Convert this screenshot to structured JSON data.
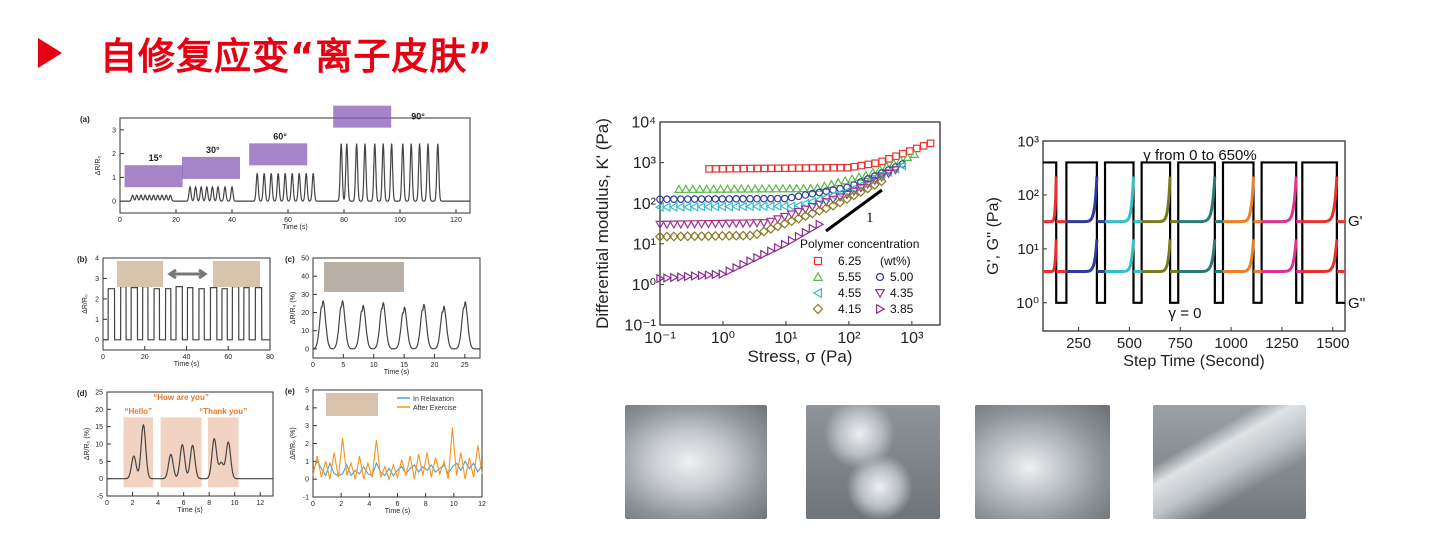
{
  "slide": {
    "title": "自修复应变“离子皮肤”",
    "accent_color": "#e60012"
  },
  "photos": [
    {
      "label": "hydrogel-intact"
    },
    {
      "label": "hydrogel-cut"
    },
    {
      "label": "hydrogel-healed"
    },
    {
      "label": "hydrogel-stretched"
    }
  ],
  "chart_data": [
    {
      "id": "a",
      "panel_label": "(a)",
      "type": "line",
      "xlabel": "Time (s)",
      "ylabel": "ΔR/R₀",
      "xlim": [
        0,
        125
      ],
      "ylim": [
        -0.5,
        3.5
      ],
      "xticks": [
        0,
        20,
        40,
        60,
        80,
        100,
        120
      ],
      "yticks": [
        0,
        1,
        2,
        3
      ],
      "groups": [
        {
          "label": "15°",
          "height": 0.25,
          "times": [
            4.5,
            6,
            7.5,
            9,
            10.5,
            12,
            13.5,
            15,
            16.5,
            18
          ]
        },
        {
          "label": "30°",
          "height": 0.6,
          "times": [
            25,
            27,
            29,
            31,
            33,
            35,
            37.5,
            40
          ]
        },
        {
          "label": "60°",
          "height": 1.17,
          "times": [
            49,
            51.5,
            54,
            56.5,
            59,
            61.5,
            64,
            66.5,
            69
          ]
        },
        {
          "label": "90°",
          "height": 2.42,
          "times": [
            79,
            81,
            84.5,
            87.5,
            91,
            94,
            97,
            101,
            104,
            107,
            110,
            113.5
          ]
        }
      ]
    },
    {
      "id": "b",
      "panel_label": "(b)",
      "type": "line",
      "xlabel": "Time (s)",
      "ylabel": "ΔR/R₀",
      "xlim": [
        0,
        80
      ],
      "ylim": [
        -0.5,
        4
      ],
      "xticks": [
        0,
        20,
        40,
        60,
        80
      ],
      "yticks": [
        0,
        1,
        2,
        3,
        4
      ],
      "pulses": [
        [
          2.5,
          5.5,
          2.5
        ],
        [
          8.5,
          11,
          2.6
        ],
        [
          13.5,
          16.5,
          2.55
        ],
        [
          19,
          21.5,
          2.6
        ],
        [
          24.5,
          27,
          2.5
        ],
        [
          30,
          32.5,
          2.5
        ],
        [
          35,
          38,
          2.6
        ],
        [
          40.5,
          43,
          2.55
        ],
        [
          46,
          48.5,
          2.5
        ],
        [
          51.5,
          54.5,
          2.55
        ],
        [
          57,
          59.5,
          2.5
        ],
        [
          62,
          65,
          2.6
        ],
        [
          67.5,
          70,
          2.55
        ],
        [
          73,
          76,
          2.55
        ]
      ]
    },
    {
      "id": "c",
      "panel_label": "(c)",
      "type": "line",
      "xlabel": "Time (s)",
      "ylabel": "ΔR/R₀ (%)",
      "xlim": [
        0,
        27.5
      ],
      "ylim": [
        -5,
        50
      ],
      "xticks": [
        0,
        5,
        10,
        15,
        20,
        25
      ],
      "yticks": [
        0,
        10,
        20,
        30,
        40,
        50
      ],
      "peaks": [
        [
          1.6,
          27
        ],
        [
          4.8,
          27
        ],
        [
          8.2,
          24.5
        ],
        [
          11.5,
          26
        ],
        [
          15,
          23.5
        ],
        [
          18.2,
          25
        ],
        [
          21.5,
          24
        ],
        [
          25,
          26.5
        ]
      ]
    },
    {
      "id": "d",
      "panel_label": "(d)",
      "type": "line",
      "xlabel": "Time (s)",
      "ylabel": "ΔR/R₀ (%)",
      "xlim": [
        0,
        13
      ],
      "ylim": [
        -5,
        25
      ],
      "xticks": [
        0,
        2,
        4,
        6,
        8,
        10,
        12
      ],
      "yticks": [
        -5,
        0,
        5,
        10,
        15,
        20,
        25
      ],
      "peaks": [
        [
          2.1,
          6.5
        ],
        [
          2.85,
          15.5
        ],
        [
          5,
          7
        ],
        [
          5.9,
          9.8
        ],
        [
          6.7,
          9.6
        ],
        [
          8.4,
          11.5
        ],
        [
          8.95,
          4.5
        ],
        [
          9.5,
          10.5
        ]
      ],
      "annotations": [
        {
          "text": "“Hello”",
          "span": [
            1.3,
            3.6
          ]
        },
        {
          "text": "“How are you”",
          "span": [
            4.2,
            7.4
          ]
        },
        {
          "text": "“Thank you”",
          "span": [
            7.9,
            10.3
          ]
        }
      ],
      "annotation_color": "#e87722"
    },
    {
      "id": "e",
      "panel_label": "(e)",
      "type": "line",
      "xlabel": "Time (s)",
      "ylabel": "ΔR/R₀ (%)",
      "xlim": [
        0,
        12
      ],
      "ylim": [
        -1,
        5
      ],
      "xticks": [
        0,
        2,
        4,
        6,
        8,
        10,
        12
      ],
      "yticks": [
        -1,
        0,
        1,
        2,
        3,
        4,
        5
      ],
      "x_step": 0.3,
      "series": [
        {
          "name": "In Relaxation",
          "color": "#4a9fd4",
          "values": [
            0.5,
            1.0,
            0.6,
            0.2,
            0.9,
            0.3,
            0.2,
            0.3,
            0.8,
            0.2,
            0.5,
            0.3,
            0.7,
            0.3,
            0.2,
            0.9,
            0.4,
            0.2,
            0.6,
            0.2,
            0.5,
            0.7,
            0.3,
            0.6,
            0.8,
            0.4,
            0.7,
            0.5,
            0.8,
            0.4,
            0.6,
            0.8,
            0.3,
            0.7,
            0.9,
            0.5,
            1.0,
            0.6,
            0.9,
            0.4,
            0.8
          ]
        },
        {
          "name": "After Exercise",
          "color": "#f7941d",
          "values": [
            0.2,
            1.3,
            0.1,
            1.0,
            0.0,
            1.5,
            0.1,
            2.3,
            0.2,
            0.9,
            0.0,
            1.3,
            0.0,
            0.9,
            0.1,
            2.2,
            0.1,
            0.7,
            0.0,
            0.8,
            0.1,
            1.1,
            0.2,
            1.3,
            0.0,
            1.4,
            0.2,
            1.5,
            0.1,
            1.2,
            0.3,
            1.0,
            0.0,
            2.9,
            0.2,
            1.5,
            0.0,
            1.2,
            0.1,
            1.9,
            0.3
          ]
        }
      ]
    },
    {
      "id": "k",
      "type": "scatter",
      "xlabel": "Stress, σ (Pa)",
      "ylabel": "Differential modulus, K' (Pa)",
      "xscale": "log",
      "yscale": "log",
      "xlim": [
        0.1,
        2800
      ],
      "ylim": [
        0.1,
        10000
      ],
      "xticks": [
        "10⁻¹",
        "10⁰",
        "10¹",
        "10²",
        "10³"
      ],
      "yticks": [
        "10⁻¹",
        "10⁰",
        "10¹",
        "10²",
        "10³",
        "10⁴"
      ],
      "legend_title": "Polymer concentration",
      "legend_unit": "(wt%)",
      "slope_label": "1",
      "series": [
        {
          "name": "6.25",
          "marker": "square",
          "color": "#e8322d",
          "points": [
            [
              0.6,
              700
            ],
            [
              100,
              750
            ],
            [
              300,
              1000
            ],
            [
              2000,
              3000
            ]
          ]
        },
        {
          "name": "5.55",
          "marker": "triangle-up",
          "color": "#5bb847",
          "points": [
            [
              0.2,
              220
            ],
            [
              30,
              230
            ],
            [
              200,
              500
            ],
            [
              1200,
              1700
            ]
          ]
        },
        {
          "name": "5.00",
          "marker": "circle",
          "color": "#2e3a9c",
          "points": [
            [
              0.1,
              125
            ],
            [
              10,
              130
            ],
            [
              100,
              250
            ],
            [
              800,
              1000
            ]
          ]
        },
        {
          "name": "4.55",
          "marker": "triangle-left",
          "color": "#35c0c8",
          "points": [
            [
              0.1,
              80
            ],
            [
              15,
              85
            ],
            [
              100,
              200
            ],
            [
              900,
              1000
            ]
          ]
        },
        {
          "name": "4.35",
          "marker": "triangle-down",
          "color": "#a1308f",
          "points": [
            [
              0.1,
              30
            ],
            [
              5,
              33
            ],
            [
              100,
              170
            ],
            [
              700,
              800
            ]
          ]
        },
        {
          "name": "4.15",
          "marker": "diamond",
          "color": "#8a7a1e",
          "points": [
            [
              0.1,
              15
            ],
            [
              3,
              16
            ],
            [
              60,
              90
            ],
            [
              400,
              400
            ]
          ]
        },
        {
          "name": "3.85",
          "marker": "triangle-right",
          "color": "#8a2c8e",
          "points": [
            [
              0.1,
              1.4
            ],
            [
              1,
              1.8
            ],
            [
              10,
              10
            ],
            [
              40,
              35
            ]
          ]
        }
      ]
    },
    {
      "id": "g",
      "type": "line",
      "xlabel": "Step Time (Second)",
      "ylabel": "G', G'' (Pa)",
      "yscale": "log",
      "xlim": [
        75,
        1560
      ],
      "ylim": [
        0.3,
        1000
      ],
      "xticks": [
        250,
        500,
        750,
        1000,
        1250,
        1500
      ],
      "yticks": [
        "10⁰",
        "10¹",
        "10²",
        "10³"
      ],
      "annotation_top": "γ from 0 to 650%",
      "annotation_bottom": "γ = 0",
      "series_labels": [
        "G'",
        "G''"
      ],
      "strain_high_intervals": [
        [
          75,
          140
        ],
        [
          190,
          340
        ],
        [
          380,
          520
        ],
        [
          560,
          700
        ],
        [
          740,
          920
        ],
        [
          960,
          1110
        ],
        [
          1150,
          1320
        ],
        [
          1350,
          1520
        ]
      ],
      "strain_levels_on_axis": [
        1,
        400
      ],
      "g_prime": {
        "base": 32,
        "peak": 220
      },
      "g_double_prime": {
        "base": 3.8,
        "peak": 15
      },
      "segment_colors": [
        "#e8322d",
        "#2e3a9c",
        "#35c0c8",
        "#7a7a1e",
        "#2a7b73",
        "#f07f23",
        "#e0338d",
        "#e8322d"
      ]
    }
  ]
}
